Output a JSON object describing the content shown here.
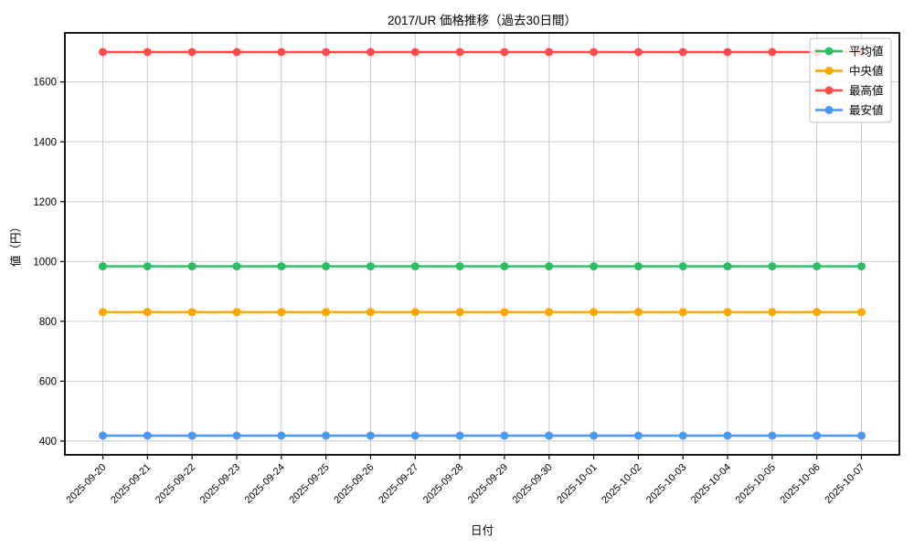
{
  "chart_data": {
    "type": "line",
    "title": "2017/UR 価格推移（過去30日間）",
    "xlabel": "日付",
    "ylabel": "値（円）",
    "categories": [
      "2025-09-20",
      "2025-09-21",
      "2025-09-22",
      "2025-09-23",
      "2025-09-24",
      "2025-09-25",
      "2025-09-26",
      "2025-09-27",
      "2025-09-28",
      "2025-09-29",
      "2025-09-30",
      "2025-10-01",
      "2025-10-02",
      "2025-10-03",
      "2025-10-04",
      "2025-10-05",
      "2025-10-06",
      "2025-10-07"
    ],
    "series": [
      {
        "name": "平均値",
        "color": "#2cbd63",
        "values": [
          984,
          984,
          984,
          984,
          984,
          984,
          984,
          984,
          984,
          984,
          984,
          984,
          984,
          984,
          984,
          984,
          984,
          984
        ]
      },
      {
        "name": "中央値",
        "color": "#ffa502",
        "values": [
          831,
          831,
          831,
          831,
          831,
          831,
          831,
          831,
          831,
          831,
          831,
          831,
          831,
          831,
          831,
          831,
          831,
          831
        ]
      },
      {
        "name": "最高値",
        "color": "#ff4b4b",
        "values": [
          1700,
          1700,
          1700,
          1700,
          1700,
          1700,
          1700,
          1700,
          1700,
          1700,
          1700,
          1700,
          1700,
          1700,
          1700,
          1700,
          1700,
          1700
        ]
      },
      {
        "name": "最安値",
        "color": "#4d96f5",
        "values": [
          418,
          418,
          418,
          418,
          418,
          418,
          418,
          418,
          418,
          418,
          418,
          418,
          418,
          418,
          418,
          418,
          418,
          418
        ]
      }
    ],
    "yticks": [
      400,
      600,
      800,
      1000,
      1200,
      1400,
      1600
    ],
    "ylim": [
      354,
      1764
    ],
    "grid": true,
    "grid_color": "#c9c9c9",
    "axis_color": "#000000",
    "legend_position": "upper right",
    "legend_items": [
      "平均値",
      "中央値",
      "最高値",
      "最安値"
    ]
  }
}
